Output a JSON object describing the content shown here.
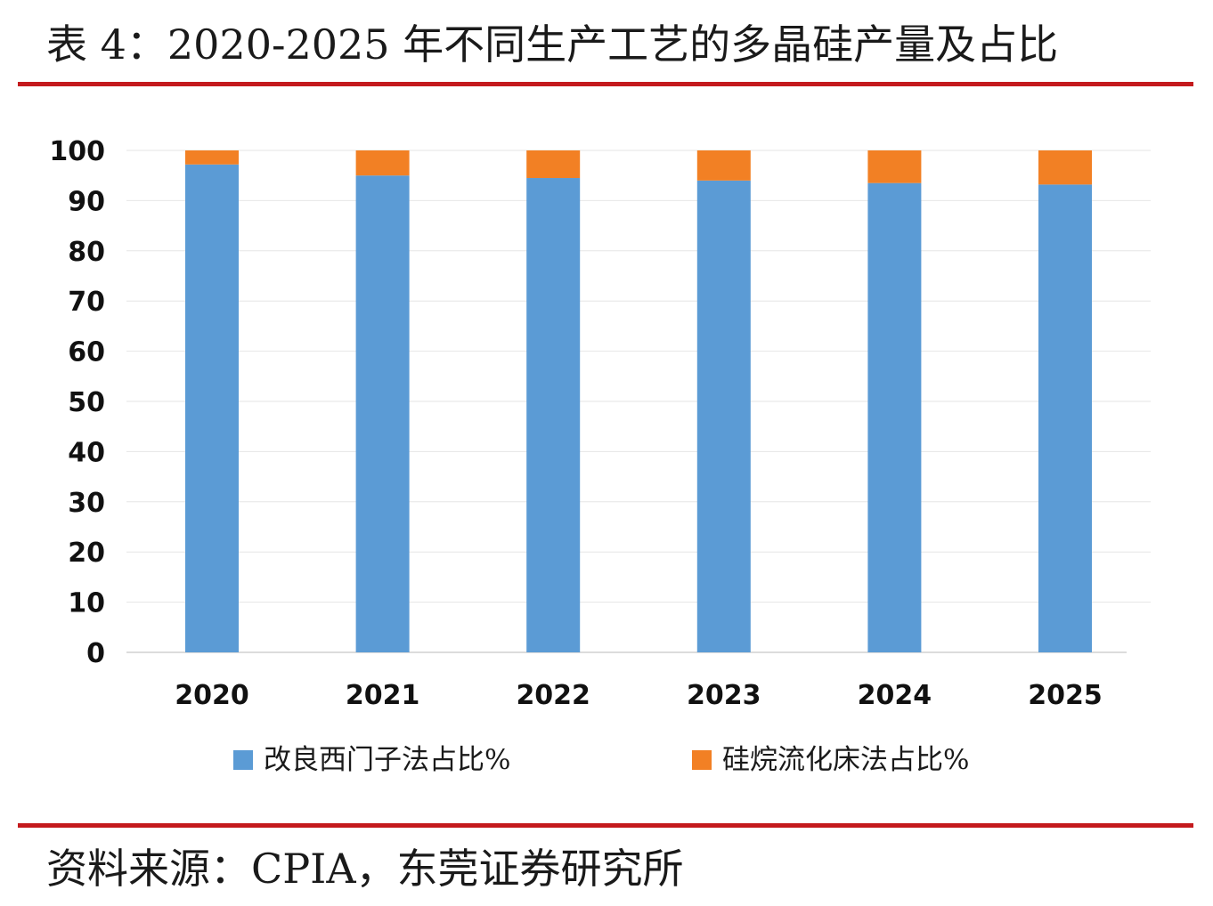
{
  "title": "表 4：2020-2025 年不同生产工艺的多晶硅产量及占比",
  "source": "资料来源：CPIA，东莞证券研究所",
  "colors": {
    "series_1": "#5b9bd5",
    "series_2": "#f28024",
    "rule": "#c41a1d",
    "grid": "#e6e6e6"
  },
  "chart_data": {
    "type": "bar",
    "stacked": true,
    "categories": [
      "2020",
      "2021",
      "2022",
      "2023",
      "2024",
      "2025"
    ],
    "series": [
      {
        "name": "改良西门子法占比%",
        "values": [
          97.2,
          95.0,
          94.5,
          94.0,
          93.5,
          93.2
        ]
      },
      {
        "name": "硅烷流化床法占比%",
        "values": [
          2.8,
          5.0,
          5.5,
          6.0,
          6.5,
          6.8
        ]
      }
    ],
    "yticks": [
      "0",
      "10",
      "20",
      "30",
      "40",
      "50",
      "60",
      "70",
      "80",
      "90",
      "100"
    ],
    "ylim": [
      0,
      100
    ],
    "grid": true,
    "legend_position": "bottom"
  }
}
